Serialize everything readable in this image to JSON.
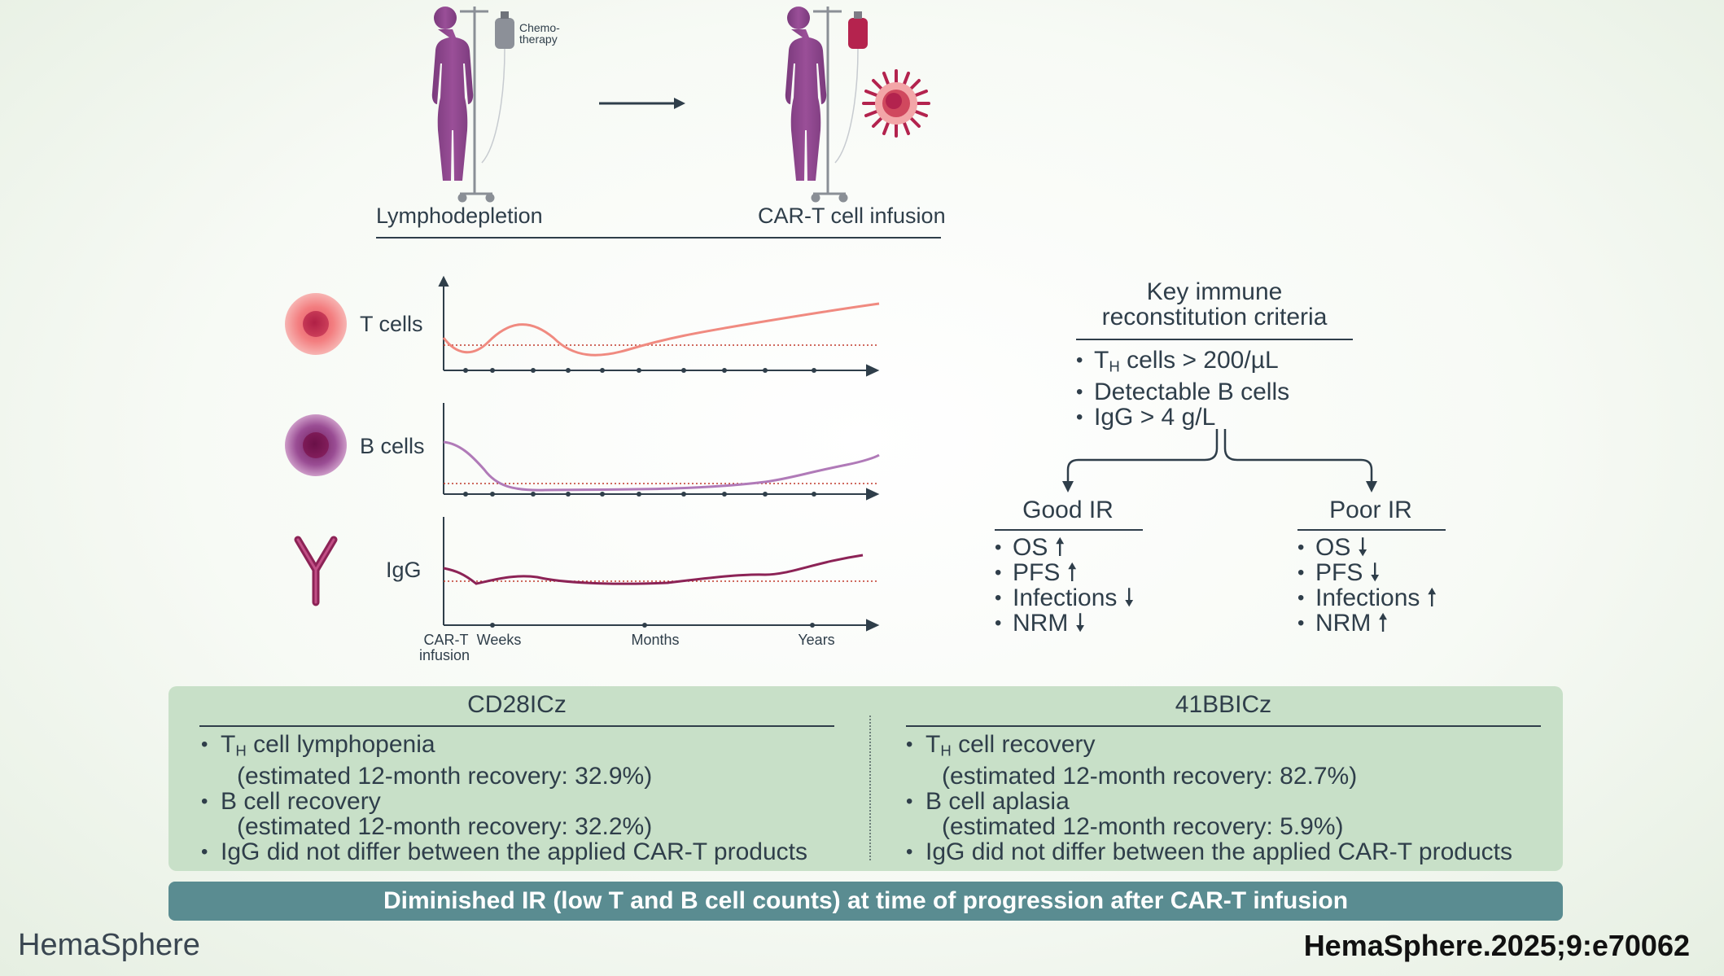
{
  "top": {
    "chemo_line1": "Chemo-",
    "chemo_line2": "therapy",
    "step1_label": "Lymphodepletion",
    "step2_label": "CAR-T cell infusion"
  },
  "chart_data": {
    "type": "line",
    "panels": [
      {
        "name": "T cells"
      },
      {
        "name": "B cells"
      },
      {
        "name": "IgG"
      }
    ],
    "x_ticks": [
      "CAR-T",
      "infusion",
      "Weeks",
      "Months",
      "Years"
    ]
  },
  "criteria": {
    "title_line1": "Key immune",
    "title_line2": "reconstitution criteria",
    "item1_a": "T",
    "item1_sub": "H",
    "item1_b": " cells > 200/µL",
    "item2": "Detectable B cells",
    "item3": "IgG > 4 g/L"
  },
  "good_ir": {
    "title": "Good IR",
    "items": [
      "OS",
      "PFS",
      "Infections",
      "NRM"
    ]
  },
  "poor_ir": {
    "title": "Poor IR",
    "items": [
      "OS",
      "PFS",
      "Infections",
      "NRM"
    ]
  },
  "cd28": {
    "title": "CD28ICz",
    "l1_a": "T",
    "l1_sub": "H",
    "l1_b": " cell lymphopenia",
    "l2": "(estimated 12-month recovery: 32.9%)",
    "l3": "B cell recovery",
    "l4": "(estimated 12-month recovery: 32.2%)",
    "l5": "IgG did not differ between the applied CAR-T products"
  },
  "bb41": {
    "title": "41BBICz",
    "l1_a": "T",
    "l1_sub": "H",
    "l1_b": " cell recovery",
    "l2": "(estimated 12-month recovery: 82.7%)",
    "l3": "B cell aplasia",
    "l4": "(estimated 12-month recovery: 5.9%)",
    "l5": "IgG did not differ between the applied CAR-T products"
  },
  "banner": "Diminished IR (low T and B cell counts) at time of progression after CAR-T infusion",
  "footer": {
    "brand": "HemaSphere",
    "citation": "HemaSphere.2025;9:e70062"
  },
  "colors": {
    "t_cell": "#f08a80",
    "b_cell": "#b07ab8",
    "igg": "#8c2356",
    "figure": "#8a3f86",
    "box_bg": "#c8e0c8",
    "banner_bg": "#5a8c91",
    "text": "#2f3e4a"
  }
}
